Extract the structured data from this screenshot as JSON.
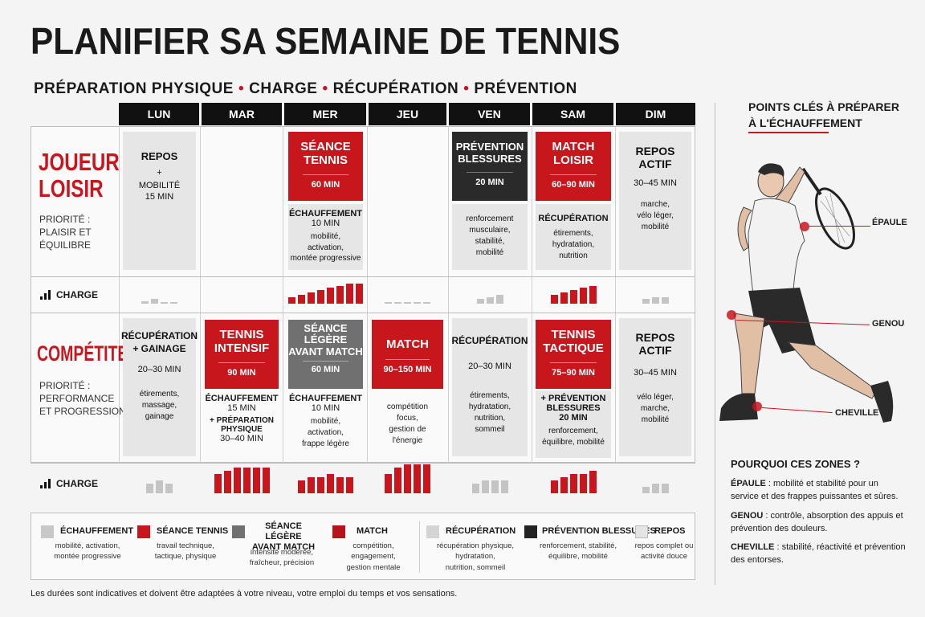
{
  "title": "PLANIFIER SA SEMAINE DE TENNIS",
  "subtitle": {
    "p1": "PRÉPARATION PHYSIQUE",
    "p2": "CHARGE",
    "p3": "RÉCUPÉRATION",
    "p4": "PRÉVENTION",
    "dot": "•"
  },
  "days": [
    "LUN",
    "MAR",
    "MER",
    "JEU",
    "VEN",
    "SAM",
    "DIM"
  ],
  "charge_label": "CHARGE",
  "loisir": {
    "title1": "JOUEUR",
    "title2": "LOISIR",
    "priority1": "PRIORITÉ :",
    "priority2": "PLAISIR ET",
    "priority3": "ÉQUILIBRE",
    "lun": {
      "t1": "REPOS",
      "t2": "+",
      "t3": "MOBILITÉ",
      "t4": "15 MIN"
    },
    "mer": {
      "title1": "SÉANCE",
      "title2": "TENNIS",
      "dur": "60 MIN",
      "sub1": "ÉCHAUFFEMENT",
      "sub2": "10 MIN",
      "n1": "mobilité,",
      "n2": "activation,",
      "n3": "montée progressive"
    },
    "ven": {
      "title1": "PRÉVENTION",
      "title2": "BLESSURES",
      "dur": "20 MIN",
      "n1": "renforcement",
      "n2": "musculaire,",
      "n3": "stabilité,",
      "n4": "mobilité"
    },
    "sam": {
      "title1": "MATCH",
      "title2": "LOISIR",
      "dur": "60–90 MIN",
      "sub1": "RÉCUPÉRATION",
      "n1": "étirements,",
      "n2": "hydratation,",
      "n3": "nutrition"
    },
    "dim": {
      "title1": "REPOS",
      "title2": "ACTIF",
      "dur": "30–45 MIN",
      "n1": "marche,",
      "n2": "vélo léger,",
      "n3": "mobilité"
    },
    "charge": [
      [
        1,
        2,
        0.5,
        0.5
      ],
      [],
      [
        3,
        4,
        5,
        6,
        7,
        8,
        9,
        9
      ],
      [
        0.5,
        0.5,
        0.5,
        0.5,
        0.5
      ],
      [
        2,
        3,
        4
      ],
      [
        4,
        5,
        6,
        7,
        8
      ],
      [
        2,
        3,
        3
      ]
    ]
  },
  "comp": {
    "title1": "COMPÉTITEUR",
    "priority1": "PRIORITÉ :",
    "priority2": "PERFORMANCE",
    "priority3": "ET PROGRESSION",
    "lun": {
      "t1": "RÉCUPÉRATION",
      "t2": "+ GAINAGE",
      "dur": "20–30 MIN",
      "n1": "étirements,",
      "n2": "massage,",
      "n3": "gainage"
    },
    "mar": {
      "title1": "TENNIS",
      "title2": "INTENSIF",
      "dur": "90 MIN",
      "sub1": "ÉCHAUFFEMENT",
      "sub2": "15 MIN",
      "sub3": "+ PRÉPARATION",
      "sub4": "PHYSIQUE",
      "sub5": "30–40 MIN"
    },
    "mer": {
      "title1": "SÉANCE",
      "title2": "LÉGÈRE",
      "title3": "AVANT MATCH",
      "dur": "60 MIN",
      "sub1": "ÉCHAUFFEMENT",
      "sub2": "10 MIN",
      "n1": "mobilité,",
      "n2": "activation,",
      "n3": "frappe légère"
    },
    "jeu": {
      "title1": "MATCH",
      "dur": "90–150 MIN",
      "n1": "compétition",
      "n2": "focus,",
      "n3": "gestion de",
      "n4": "l'énergie"
    },
    "ven": {
      "t1": "RÉCUPÉRATION",
      "dur": "20–30 MIN",
      "n1": "étirements,",
      "n2": "hydratation,",
      "n3": "nutrition,",
      "n4": "sommeil"
    },
    "sam": {
      "title1": "TENNIS",
      "title2": "TACTIQUE",
      "dur": "75–90 MIN",
      "sub1": "+ PRÉVENTION",
      "sub2": "BLESSURES",
      "sub3": "20 MIN",
      "n1": "renforcement,",
      "n2": "équilibre, mobilité"
    },
    "dim": {
      "title1": "REPOS",
      "title2": "ACTIF",
      "dur": "30–45 MIN",
      "n1": "vélo léger,",
      "n2": "marche,",
      "n3": "mobilité"
    },
    "charge": [
      [
        3,
        4,
        3
      ],
      [
        6,
        7,
        8,
        8,
        8,
        8
      ],
      [
        4,
        5,
        5,
        6,
        5,
        5
      ],
      [
        6,
        8,
        9,
        9,
        9
      ],
      [
        3,
        4,
        4,
        4
      ],
      [
        4,
        5,
        6,
        6,
        7
      ],
      [
        2,
        3,
        3
      ]
    ]
  },
  "side": {
    "header1": "POINTS CLÉS À PRÉPARER",
    "header2": "À L'ÉCHAUFFEMENT",
    "z1": "ÉPAULE",
    "z2": "GENOU",
    "z3": "CHEVILLE",
    "why": "POURQUOI CES ZONES ?",
    "w1b": "ÉPAULE",
    "w1": " : mobilité et stabilité pour un service et des frappes puissantes et sûres.",
    "w2b": "GENOU",
    "w2": " : contrôle, absorption des appuis et prévention des douleurs.",
    "w3b": "CHEVILLE",
    "w3": " : stabilité, réactivité et prévention des entorses."
  },
  "legend": [
    {
      "title": "ÉCHAUFFEMENT",
      "color": "#c8c8c8",
      "d1": "mobilité, activation,",
      "d2": "montée progressive",
      "d3": ""
    },
    {
      "title": "SÉANCE TENNIS",
      "color": "#c8161d",
      "d1": "travail technique,",
      "d2": "tactique, physique",
      "d3": ""
    },
    {
      "title": "SÉANCE LÉGÈRE AVANT MATCH",
      "color": "#707070",
      "d1": "intensité modérée,",
      "d2": "fraîcheur, précision",
      "d3": ""
    },
    {
      "title": "MATCH",
      "color": "#b5141a",
      "d1": "compétition,",
      "d2": "engagement,",
      "d3": "gestion mentale"
    },
    {
      "title": "RÉCUPÉRATION",
      "color": "#d4d4d4",
      "d1": "récupération physique,",
      "d2": "hydratation,",
      "d3": "nutrition, sommeil"
    },
    {
      "title": "PRÉVENTION BLESSURES",
      "color": "#222222",
      "d1": "renforcement, stabilité,",
      "d2": "équilibre, mobilité",
      "d3": ""
    },
    {
      "title": "REPOS",
      "color": "#e4e4e4",
      "d1": "repos complet ou",
      "d2": "activité douce",
      "d3": ""
    }
  ],
  "footnote": "Les durées sont indicatives et doivent être adaptées à votre niveau, votre emploi du temps et vos sensations.",
  "colors": {
    "red": "#c8161d",
    "dark": "#2a2a2a",
    "grey": "#707070",
    "light": "#e6e6e6"
  }
}
